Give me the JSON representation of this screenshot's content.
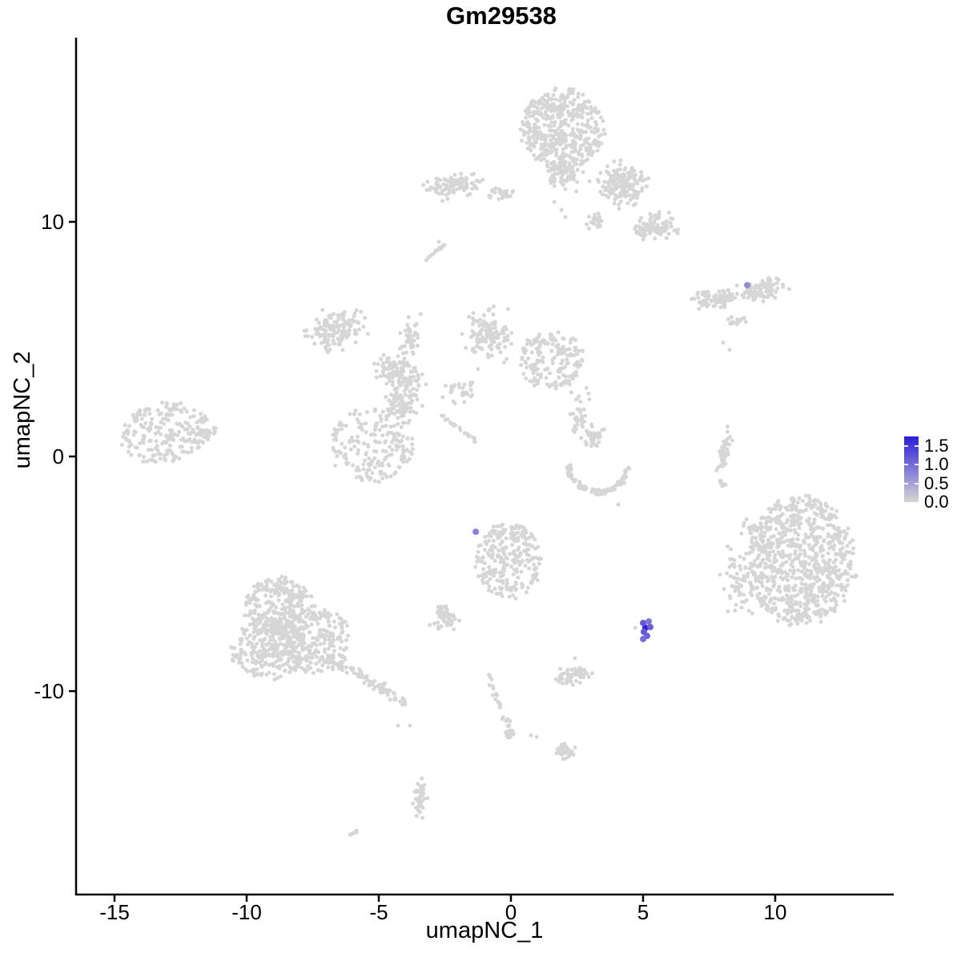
{
  "title": "Gm29538",
  "axes": {
    "x": {
      "label": "umapNC_1",
      "ticks": [
        "-15",
        "-10",
        "-5",
        "0",
        "5",
        "10"
      ],
      "tick_values": [
        -15,
        -10,
        -5,
        0,
        5,
        10
      ]
    },
    "y": {
      "label": "umapNC_2",
      "ticks": [
        "10",
        "0",
        "-10"
      ],
      "tick_values": [
        10,
        0,
        -10
      ]
    }
  },
  "legend": {
    "labels": [
      "1.5",
      "1.0",
      "0.5",
      "0.0"
    ],
    "values": [
      1.5,
      1.0,
      0.5,
      0.0
    ],
    "bar_max": 1.76,
    "low_color": "#D6D6D6",
    "high_color": "#2B1DD8",
    "tick_color": "#FFFFFF"
  },
  "chart_data": {
    "type": "scatter",
    "subtype": "umap-feature-plot",
    "title": "Gm29538",
    "xlabel": "umapNC_1",
    "ylabel": "umapNC_2",
    "xlim": [
      -16.45,
      14.45
    ],
    "ylim": [
      -18.67,
      17.85
    ],
    "grid": false,
    "legend_position": "right",
    "point_color": "#D6D6D6",
    "point_radius": 2.5,
    "expression_point_radius": 4,
    "background_clusters": [
      {
        "id": "top-main",
        "kind": "blob",
        "dist": "disk",
        "cx": 1.97,
        "cy": 13.99,
        "rx": 1.58,
        "ry": 1.71,
        "rot": 0,
        "n": 430
      },
      {
        "id": "top-main-south",
        "kind": "blob",
        "dist": "gauss",
        "cx": 2.03,
        "cy": 12.12,
        "rx": 0.91,
        "ry": 0.96,
        "rot": 0,
        "n": 90
      },
      {
        "id": "top-arm-right",
        "kind": "blob",
        "dist": "gauss",
        "cx": 4.15,
        "cy": 11.6,
        "rx": 1.15,
        "ry": 1.09,
        "rot": -30,
        "n": 150
      },
      {
        "id": "top-arm-lower",
        "kind": "blob",
        "dist": "gauss",
        "cx": 5.36,
        "cy": 9.73,
        "rx": 0.97,
        "ry": 0.68,
        "rot": -20,
        "n": 110
      },
      {
        "id": "left-band",
        "kind": "blob",
        "dist": "gauss",
        "cx": -2.21,
        "cy": 11.54,
        "rx": 1.36,
        "ry": 0.61,
        "rot": -8,
        "n": 100
      },
      {
        "id": "band-bridge",
        "kind": "blob",
        "dist": "gauss",
        "cx": -0.39,
        "cy": 11.16,
        "rx": 0.76,
        "ry": 0.34,
        "rot": 0,
        "n": 26
      },
      {
        "id": "small-blob-mid-top",
        "kind": "blob",
        "dist": "gauss",
        "cx": 3.24,
        "cy": 10.0,
        "rx": 0.39,
        "ry": 0.38,
        "rot": 0,
        "n": 25
      },
      {
        "id": "sliver-upper-left",
        "kind": "line",
        "x1": -3.36,
        "y1": 8.29,
        "x2": -2.52,
        "y2": 8.98,
        "w": 2,
        "n": 16
      },
      {
        "id": "wing-left",
        "kind": "blob",
        "dist": "gauss",
        "cx": 7.79,
        "cy": 6.76,
        "rx": 1.06,
        "ry": 0.48,
        "rot": -8,
        "n": 80
      },
      {
        "id": "wing-right",
        "kind": "blob",
        "dist": "gauss",
        "cx": 9.45,
        "cy": 7.1,
        "rx": 1.06,
        "ry": 0.55,
        "rot": -15,
        "n": 90
      },
      {
        "id": "wing-below",
        "kind": "blob",
        "dist": "gauss",
        "cx": 8.55,
        "cy": 5.8,
        "rx": 0.55,
        "ry": 0.27,
        "rot": 0,
        "n": 14
      },
      {
        "id": "star-nw",
        "kind": "blob",
        "dist": "gauss",
        "cx": -6.61,
        "cy": 5.39,
        "rx": 1.36,
        "ry": 1.09,
        "rot": -15,
        "n": 130
      },
      {
        "id": "star-n-arm",
        "kind": "blob",
        "dist": "gauss",
        "cx": -3.82,
        "cy": 5.12,
        "rx": 0.42,
        "ry": 1.19,
        "rot": 8,
        "n": 38
      },
      {
        "id": "star-ne",
        "kind": "blob",
        "dist": "gauss",
        "cx": -0.79,
        "cy": 5.12,
        "rx": 1.06,
        "ry": 1.37,
        "rot": 0,
        "n": 120
      },
      {
        "id": "star-e",
        "kind": "blob",
        "dist": "disk",
        "cx": 1.52,
        "cy": 4.1,
        "rx": 1.27,
        "ry": 1.19,
        "rot": -20,
        "n": 170
      },
      {
        "id": "star-center",
        "kind": "blob",
        "dist": "gauss",
        "cx": -4.27,
        "cy": 3.55,
        "rx": 1.21,
        "ry": 0.75,
        "rot": 25,
        "n": 110
      },
      {
        "id": "star-core",
        "kind": "blob",
        "dist": "gauss",
        "cx": -4.18,
        "cy": 2.22,
        "rx": 0.85,
        "ry": 0.96,
        "rot": 0,
        "n": 90
      },
      {
        "id": "star-sw",
        "kind": "blob",
        "dist": "disk",
        "cx": -5.24,
        "cy": 0.51,
        "rx": 1.58,
        "ry": 1.54,
        "rot": 10,
        "n": 190
      },
      {
        "id": "star-streak",
        "kind": "line",
        "x1": -2.61,
        "y1": 1.71,
        "x2": -1.24,
        "y2": 0.58,
        "w": 2.5,
        "n": 22
      },
      {
        "id": "star-mid-sparse",
        "kind": "blob",
        "dist": "gauss",
        "cx": -1.91,
        "cy": 2.83,
        "rx": 0.91,
        "ry": 0.61,
        "rot": 0,
        "n": 30
      },
      {
        "id": "star-se-sparse",
        "kind": "blob",
        "dist": "gauss",
        "cx": 2.64,
        "cy": 1.71,
        "rx": 0.67,
        "ry": 1.54,
        "rot": 0,
        "n": 40
      },
      {
        "id": "far-left",
        "kind": "blob",
        "dist": "disk",
        "cx": -13.12,
        "cy": 1.02,
        "rx": 1.67,
        "ry": 1.3,
        "rot": -15,
        "n": 215
      },
      {
        "id": "far-left-tail",
        "kind": "blob",
        "dist": "gauss",
        "cx": -11.39,
        "cy": 1.02,
        "rx": 0.76,
        "ry": 0.34,
        "rot": 0,
        "n": 20
      },
      {
        "id": "crescent",
        "kind": "arc",
        "cx": 3.33,
        "cy": -0.24,
        "rx": 1.15,
        "ry": 1.3,
        "a0": 185,
        "a1": 355,
        "n": 90
      },
      {
        "id": "crescent-cap",
        "kind": "blob",
        "dist": "gauss",
        "cx": 3.15,
        "cy": 0.78,
        "rx": 0.45,
        "ry": 0.41,
        "rot": 0,
        "n": 35
      },
      {
        "id": "thin-vertical",
        "kind": "blob",
        "dist": "gauss",
        "cx": 8.09,
        "cy": 0.24,
        "rx": 0.27,
        "ry": 1.13,
        "rot": 10,
        "n": 45
      },
      {
        "id": "thin-vertical-below",
        "kind": "blob",
        "dist": "gauss",
        "cx": 8.03,
        "cy": -1.13,
        "rx": 0.18,
        "ry": 0.34,
        "rot": 0,
        "n": 7
      },
      {
        "id": "center-bottom",
        "kind": "blob",
        "dist": "disk",
        "cx": -0.09,
        "cy": -4.44,
        "rx": 1.27,
        "ry": 1.64,
        "rot": 0,
        "n": 250
      },
      {
        "id": "center-bottom-west",
        "kind": "blob",
        "dist": "gauss",
        "cx": -2.48,
        "cy": -6.83,
        "rx": 0.61,
        "ry": 0.61,
        "rot": 0,
        "n": 55
      },
      {
        "id": "bottom-left-top",
        "kind": "blob",
        "dist": "disk",
        "cx": -8.73,
        "cy": -6.48,
        "rx": 1.36,
        "ry": 1.37,
        "rot": 0,
        "n": 270
      },
      {
        "id": "bottom-left-west",
        "kind": "blob",
        "dist": "disk",
        "cx": -9.18,
        "cy": -8.19,
        "rx": 1.45,
        "ry": 1.3,
        "rot": 0,
        "n": 250
      },
      {
        "id": "bottom-left-east",
        "kind": "blob",
        "dist": "disk",
        "cx": -7.36,
        "cy": -7.85,
        "rx": 1.36,
        "ry": 1.37,
        "rot": 0,
        "n": 220
      },
      {
        "id": "bottom-left-tail",
        "kind": "line",
        "x1": -6.91,
        "y1": -8.53,
        "x2": -4.03,
        "y2": -10.51,
        "w": 9,
        "n": 90
      },
      {
        "id": "big-right",
        "kind": "blob",
        "dist": "disk",
        "cx": 10.97,
        "cy": -4.44,
        "rx": 2.06,
        "ry": 2.73,
        "rot": 0,
        "n": 820
      },
      {
        "id": "big-right-fringe",
        "kind": "blob",
        "dist": "gauss",
        "cx": 8.55,
        "cy": -5.46,
        "rx": 0.85,
        "ry": 1.88,
        "rot": 0,
        "n": 60
      },
      {
        "id": "big-right-fringe-top",
        "kind": "blob",
        "dist": "gauss",
        "cx": 9.0,
        "cy": -2.9,
        "rx": 0.36,
        "ry": 0.61,
        "rot": 0,
        "n": 12
      },
      {
        "id": "mid-bottom-small",
        "kind": "blob",
        "dist": "gauss",
        "cx": 2.36,
        "cy": -9.32,
        "rx": 0.73,
        "ry": 0.48,
        "rot": 0,
        "n": 55
      },
      {
        "id": "trail",
        "kind": "line",
        "x1": -0.85,
        "y1": -9.39,
        "x2": 0.06,
        "y2": -11.88,
        "w": 5,
        "n": 24
      },
      {
        "id": "trail-clump",
        "kind": "blob",
        "dist": "gauss",
        "cx": -0.03,
        "cy": -11.77,
        "rx": 0.3,
        "ry": 0.27,
        "rot": 0,
        "n": 14
      },
      {
        "id": "bottom-small",
        "kind": "blob",
        "dist": "gauss",
        "cx": 2.12,
        "cy": -12.56,
        "rx": 0.55,
        "ry": 0.38,
        "rot": 20,
        "n": 38
      },
      {
        "id": "bottom-vertical",
        "kind": "blob",
        "dist": "gauss",
        "cx": -3.42,
        "cy": -14.51,
        "rx": 0.3,
        "ry": 0.96,
        "rot": 0,
        "n": 38
      },
      {
        "id": "bottom-sliver",
        "kind": "line",
        "x1": -6.3,
        "y1": -16.28,
        "x2": -5.79,
        "y2": -15.97,
        "w": 2,
        "n": 8
      }
    ],
    "singleton_points": [
      [
        4.06,
        -2.05
      ],
      [
        8.03,
        4.85
      ],
      [
        8.27,
        4.54
      ],
      [
        4.7,
        -7.3
      ],
      [
        1.64,
        10.85
      ],
      [
        1.91,
        10.51
      ],
      [
        2.06,
        10.2
      ],
      [
        -4.27,
        -11.47
      ],
      [
        -3.82,
        -11.47
      ],
      [
        2.42,
        -8.6
      ],
      [
        0.76,
        -11.88
      ],
      [
        0.97,
        -11.95
      ],
      [
        -2.73,
        9.15
      ]
    ],
    "expression_points": [
      {
        "x": 5.09,
        "y": -7.3,
        "value": 1.8
      },
      {
        "x": 5.0,
        "y": -7.1,
        "value": 1.2
      },
      {
        "x": 5.21,
        "y": -7.03,
        "value": 0.9
      },
      {
        "x": 5.27,
        "y": -7.27,
        "value": 1.1
      },
      {
        "x": 5.03,
        "y": -7.47,
        "value": 1.2
      },
      {
        "x": 5.15,
        "y": -7.65,
        "value": 1.1
      },
      {
        "x": 5.0,
        "y": -7.78,
        "value": 1.0
      },
      {
        "x": -1.33,
        "y": -3.21,
        "value": 0.8
      },
      {
        "x": 8.94,
        "y": 7.3,
        "value": 0.7
      }
    ]
  }
}
